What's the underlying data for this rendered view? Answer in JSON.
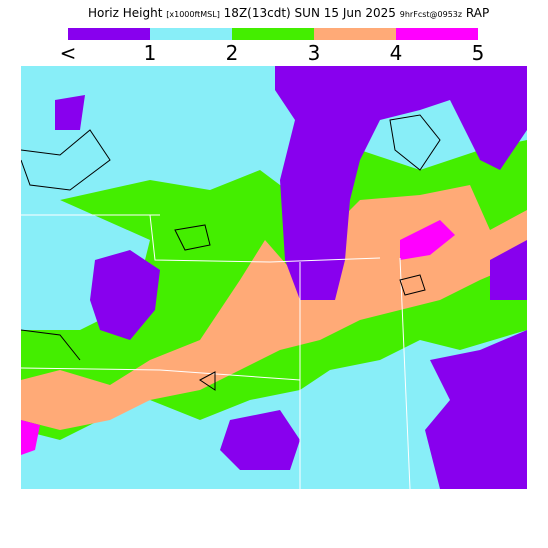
{
  "header": {
    "title": [
      "Horiz Height",
      "[x1000ftMSL]",
      "18Z(13cdt)",
      "SUN 15 Jun 2025",
      "9hrFcst@0953z",
      "RAP"
    ]
  },
  "legend": {
    "labels": [
      "<",
      "1",
      "2",
      "3",
      "4",
      "5"
    ],
    "colors": [
      "#8800ee",
      "#88eef8",
      "#44ee00",
      "#ffaa77",
      "#ff00ff"
    ]
  }
}
